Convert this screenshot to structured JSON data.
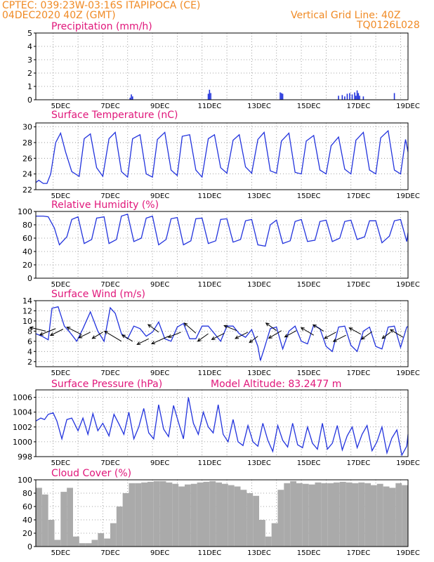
{
  "header": {
    "line1": "CPTEC:   039:23W-03:16S   ITAPIPOCA (CE)",
    "line2": "04DEC2020 40Z (GMT)",
    "right1": "Vertical Grid Line: 40Z",
    "right2": "TQ0126L028"
  },
  "colors": {
    "header": "#f08a24",
    "title": "#e0167a",
    "line": "#2233dd",
    "cloud": "#aaaaaa",
    "arrow": "#000000"
  },
  "chart_data": [
    {
      "type": "bar",
      "title": "Precipitation (mm/h)",
      "xlabels": [
        "5DEC",
        "7DEC",
        "9DEC",
        "11DEC",
        "13DEC",
        "15DEC",
        "17DEC",
        "19DEC"
      ],
      "xlim": [
        4.0,
        19.0
      ],
      "ylim": [
        0,
        5
      ],
      "yticks": [
        0,
        1,
        2,
        3,
        4,
        5
      ],
      "x": [
        7.8,
        7.85,
        7.9,
        10.95,
        11.0,
        11.05,
        13.85,
        13.9,
        13.95,
        16.2,
        16.35,
        16.45,
        16.55,
        16.65,
        16.75,
        16.85,
        16.9,
        16.95,
        17.0,
        17.05,
        17.2,
        18.45
      ],
      "values": [
        0.15,
        0.4,
        0.25,
        0.45,
        0.75,
        0.5,
        0.55,
        0.5,
        0.45,
        0.3,
        0.35,
        0.25,
        0.45,
        0.5,
        0.4,
        0.55,
        0.3,
        0.7,
        0.5,
        0.3,
        0.25,
        0.5
      ]
    },
    {
      "type": "line",
      "title": "Surface Temperature (nC)",
      "xlabels": [
        "5DEC",
        "7DEC",
        "9DEC",
        "11DEC",
        "13DEC",
        "15DEC",
        "17DEC",
        "19DEC"
      ],
      "xlim": [
        4.0,
        19.0
      ],
      "ylim": [
        22,
        30.5
      ],
      "yticks": [
        22,
        24,
        26,
        28,
        30
      ],
      "x": [
        4.0,
        4.12,
        4.3,
        4.45,
        4.6,
        4.8,
        5.0,
        5.2,
        5.45,
        5.75,
        5.95,
        6.2,
        6.45,
        6.7,
        6.95,
        7.2,
        7.45,
        7.7,
        7.9,
        8.2,
        8.45,
        8.7,
        8.9,
        9.2,
        9.45,
        9.7,
        9.9,
        10.2,
        10.45,
        10.7,
        10.95,
        11.2,
        11.45,
        11.7,
        11.95,
        12.2,
        12.45,
        12.7,
        12.95,
        13.2,
        13.45,
        13.7,
        13.9,
        14.2,
        14.45,
        14.7,
        14.9,
        15.2,
        15.45,
        15.7,
        15.9,
        16.2,
        16.45,
        16.7,
        16.9,
        17.2,
        17.45,
        17.7,
        17.9,
        18.2,
        18.45,
        18.7,
        18.9,
        19.0
      ],
      "values": [
        22.9,
        23.2,
        22.8,
        22.8,
        24.0,
        28.0,
        29.2,
        26.8,
        24.3,
        23.7,
        28.5,
        29.1,
        24.8,
        23.7,
        28.5,
        29.3,
        24.3,
        23.6,
        28.5,
        29.0,
        24.0,
        23.6,
        28.4,
        29.3,
        24.5,
        23.8,
        28.8,
        29.0,
        24.5,
        23.6,
        28.5,
        29.0,
        24.8,
        24.1,
        28.3,
        29.0,
        24.9,
        24.1,
        28.4,
        29.3,
        24.4,
        24.1,
        28.2,
        29.2,
        24.2,
        24.0,
        28.2,
        28.9,
        24.5,
        24.0,
        27.6,
        28.7,
        24.6,
        24.0,
        28.3,
        29.3,
        24.5,
        24.0,
        28.6,
        29.5,
        24.5,
        24.0,
        28.4,
        26.8
      ]
    },
    {
      "type": "line",
      "title": "Relative Humidity (%)",
      "xlabels": [
        "5DEC",
        "7DEC",
        "9DEC",
        "11DEC",
        "13DEC",
        "15DEC",
        "17DEC",
        "19DEC"
      ],
      "xlim": [
        4.0,
        19.0
      ],
      "ylim": [
        0,
        100
      ],
      "yticks": [
        0,
        20,
        40,
        60,
        80,
        100
      ],
      "x": [
        4.0,
        4.3,
        4.5,
        4.75,
        4.95,
        5.25,
        5.45,
        5.7,
        5.95,
        6.25,
        6.45,
        6.75,
        6.95,
        7.25,
        7.45,
        7.7,
        7.95,
        8.25,
        8.45,
        8.7,
        8.95,
        9.25,
        9.45,
        9.7,
        9.95,
        10.25,
        10.45,
        10.7,
        10.95,
        11.25,
        11.45,
        11.7,
        11.95,
        12.25,
        12.45,
        12.7,
        12.95,
        13.25,
        13.45,
        13.7,
        13.95,
        14.25,
        14.45,
        14.7,
        14.95,
        15.25,
        15.45,
        15.7,
        15.95,
        16.25,
        16.45,
        16.7,
        16.95,
        17.25,
        17.45,
        17.7,
        17.95,
        18.25,
        18.45,
        18.7,
        18.95,
        19.0
      ],
      "values": [
        93,
        93,
        92,
        75,
        50,
        62,
        88,
        92,
        52,
        58,
        90,
        92,
        52,
        58,
        93,
        96,
        55,
        60,
        90,
        93,
        50,
        58,
        89,
        91,
        50,
        56,
        89,
        90,
        52,
        56,
        88,
        89,
        54,
        58,
        86,
        88,
        50,
        48,
        80,
        87,
        52,
        56,
        85,
        88,
        55,
        57,
        85,
        87,
        55,
        60,
        85,
        87,
        58,
        62,
        86,
        86,
        53,
        63,
        86,
        88,
        55,
        68
      ]
    },
    {
      "type": "line",
      "title": "Surface Wind (m/s)",
      "xlabels": [
        "5DEC",
        "7DEC",
        "9DEC",
        "11DEC",
        "13DEC",
        "15DEC",
        "17DEC",
        "19DEC"
      ],
      "xlim": [
        4.0,
        19.0
      ],
      "ylim": [
        1,
        14
      ],
      "yticks": [
        2,
        4,
        6,
        8,
        10,
        12,
        14
      ],
      "x": [
        4.0,
        4.25,
        4.5,
        4.65,
        4.9,
        5.15,
        5.4,
        5.65,
        5.9,
        6.2,
        6.5,
        6.75,
        7.0,
        7.2,
        7.45,
        7.7,
        7.95,
        8.2,
        8.45,
        8.7,
        8.95,
        9.2,
        9.45,
        9.7,
        9.95,
        10.2,
        10.45,
        10.7,
        10.95,
        11.2,
        11.45,
        11.7,
        11.95,
        12.2,
        12.45,
        12.7,
        12.95,
        13.05,
        13.2,
        13.45,
        13.7,
        13.95,
        14.2,
        14.45,
        14.7,
        14.95,
        15.2,
        15.45,
        15.7,
        15.95,
        16.2,
        16.45,
        16.7,
        16.95,
        17.2,
        17.45,
        17.7,
        17.95,
        18.2,
        18.45,
        18.7,
        18.95,
        19.0
      ],
      "values": [
        7.5,
        7.0,
        6.3,
        12.5,
        12.8,
        9.0,
        7.6,
        6.0,
        8.5,
        11.8,
        8.0,
        6.0,
        12.6,
        11.5,
        7.5,
        6.5,
        9.0,
        8.5,
        7.0,
        7.8,
        9.8,
        6.5,
        6.0,
        8.8,
        9.5,
        6.5,
        6.5,
        9.0,
        9.0,
        7.5,
        6.0,
        9.0,
        9.0,
        7.5,
        6.8,
        8.3,
        5.0,
        2.2,
        4.5,
        8.5,
        8.8,
        4.5,
        8.0,
        9.0,
        6.0,
        5.5,
        9.2,
        8.5,
        5.0,
        4.0,
        8.8,
        9.0,
        5.2,
        4.0,
        8.0,
        8.8,
        5.0,
        4.5,
        8.8,
        9.0,
        4.8,
        8.8,
        8.9
      ],
      "vectors": [
        {
          "x": 4.4,
          "y": 8.0,
          "u": -0.75,
          "v": 0.3
        },
        {
          "x": 4.8,
          "y": 8.5,
          "u": -0.75,
          "v": -0.5
        },
        {
          "x": 5.1,
          "y": 8.4,
          "u": -0.6,
          "v": -0.5
        },
        {
          "x": 5.85,
          "y": 7.3,
          "u": -0.7,
          "v": 0.6
        },
        {
          "x": 6.2,
          "y": 7.8,
          "u": -0.55,
          "v": -0.45
        },
        {
          "x": 6.7,
          "y": 7.8,
          "u": -0.5,
          "v": -0.5
        },
        {
          "x": 7.45,
          "y": 6.0,
          "u": -0.8,
          "v": 0.8
        },
        {
          "x": 7.9,
          "y": 6.0,
          "u": -0.5,
          "v": 0.5
        },
        {
          "x": 8.55,
          "y": 6.5,
          "u": -0.55,
          "v": -0.45
        },
        {
          "x": 8.95,
          "y": 7.8,
          "u": -0.5,
          "v": 0.6
        },
        {
          "x": 9.35,
          "y": 7.0,
          "u": -0.8,
          "v": -0.6
        },
        {
          "x": 9.85,
          "y": 7.8,
          "u": -0.6,
          "v": -0.4
        },
        {
          "x": 10.45,
          "y": 7.6,
          "u": -0.55,
          "v": 0.8
        },
        {
          "x": 10.95,
          "y": 7.5,
          "u": -0.5,
          "v": -0.6
        },
        {
          "x": 11.6,
          "y": 7.6,
          "u": -0.6,
          "v": -0.5
        },
        {
          "x": 12.1,
          "y": 8.1,
          "u": -0.6,
          "v": 0.4
        },
        {
          "x": 12.55,
          "y": 7.8,
          "u": -0.6,
          "v": -0.5
        },
        {
          "x": 12.95,
          "y": 7.0,
          "u": -0.4,
          "v": -0.5
        },
        {
          "x": 13.7,
          "y": 8.1,
          "u": -0.5,
          "v": 0.6
        },
        {
          "x": 13.9,
          "y": 8.1,
          "u": -0.6,
          "v": -0.6
        },
        {
          "x": 14.5,
          "y": 8.1,
          "u": -0.55,
          "v": -0.5
        },
        {
          "x": 15.2,
          "y": 7.2,
          "u": -0.6,
          "v": 0.6
        },
        {
          "x": 15.6,
          "y": 8.0,
          "u": -0.5,
          "v": 0.5
        },
        {
          "x": 16.1,
          "y": 7.8,
          "u": -0.55,
          "v": -0.5
        },
        {
          "x": 16.5,
          "y": 7.2,
          "u": -0.6,
          "v": -0.5
        },
        {
          "x": 17.1,
          "y": 7.4,
          "u": -0.55,
          "v": 0.5
        },
        {
          "x": 17.55,
          "y": 7.9,
          "u": -0.5,
          "v": -0.6
        },
        {
          "x": 18.3,
          "y": 7.8,
          "u": -0.4,
          "v": -0.5
        },
        {
          "x": 18.8,
          "y": 6.8,
          "u": -0.6,
          "v": 0.6
        }
      ]
    },
    {
      "type": "line",
      "title": "Surface Pressure (hPa)",
      "annotation": "Model Altitude: 83.2477  m",
      "xlabels": [
        "5DEC",
        "7DEC",
        "9DEC",
        "11DEC",
        "13DEC",
        "15DEC",
        "17DEC",
        "19DEC"
      ],
      "xlim": [
        4.0,
        19.0
      ],
      "ylim": [
        998,
        1007
      ],
      "yticks": [
        998,
        1000,
        1002,
        1004,
        1006
      ],
      "x": [
        4.0,
        4.2,
        4.35,
        4.5,
        4.7,
        4.85,
        5.05,
        5.25,
        5.45,
        5.7,
        5.9,
        6.1,
        6.3,
        6.5,
        6.7,
        6.95,
        7.15,
        7.35,
        7.55,
        7.75,
        7.95,
        8.15,
        8.35,
        8.55,
        8.75,
        8.95,
        9.15,
        9.35,
        9.55,
        9.75,
        9.95,
        10.15,
        10.35,
        10.55,
        10.75,
        10.95,
        11.15,
        11.35,
        11.55,
        11.75,
        11.95,
        12.15,
        12.35,
        12.55,
        12.75,
        12.95,
        13.15,
        13.35,
        13.55,
        13.75,
        13.95,
        14.15,
        14.35,
        14.55,
        14.75,
        14.95,
        15.15,
        15.35,
        15.55,
        15.75,
        15.95,
        16.15,
        16.35,
        16.55,
        16.75,
        16.95,
        17.15,
        17.35,
        17.55,
        17.75,
        17.95,
        18.15,
        18.35,
        18.55,
        18.75,
        18.95,
        19.0
      ],
      "values": [
        1002.8,
        1003.2,
        1003.0,
        1003.7,
        1003.9,
        1002.8,
        1000.4,
        1003.0,
        1003.2,
        1001.5,
        1003.2,
        1001.0,
        1003.8,
        1001.5,
        1002.5,
        1000.8,
        1003.7,
        1002.4,
        1001.0,
        1004.0,
        1000.4,
        1002.0,
        1004.5,
        1001.2,
        1000.4,
        1005.0,
        1001.7,
        1000.7,
        1004.9,
        1002.6,
        1000.4,
        1006.0,
        1002.5,
        1001.0,
        1004.0,
        1002.0,
        1001.2,
        1005.0,
        1001.0,
        1000.0,
        1003.0,
        1000.0,
        999.5,
        1002.2,
        1000.0,
        999.4,
        1002.5,
        1000.2,
        998.7,
        1002.2,
        1000.2,
        999.3,
        1002.5,
        999.6,
        999.2,
        1002.0,
        999.8,
        999.0,
        1002.5,
        999.0,
        999.8,
        1002.2,
        998.9,
        1000.8,
        1002.0,
        999.2,
        1001.0,
        1002.2,
        998.8,
        1000.0,
        1002.0,
        998.5,
        1000.5,
        1001.6,
        998.2,
        999.4,
        1001.0
      ]
    },
    {
      "type": "bar",
      "title": "Cloud Cover (%)",
      "xlabels": [
        "5DEC",
        "7DEC",
        "9DEC",
        "11DEC",
        "13DEC",
        "15DEC",
        "17DEC",
        "19DEC"
      ],
      "xlim": [
        4.0,
        19.0
      ],
      "ylim": [
        0,
        100
      ],
      "yticks": [
        0,
        20,
        40,
        60,
        80,
        100
      ],
      "x": [
        4.0,
        4.25,
        4.5,
        4.75,
        5.0,
        5.25,
        5.5,
        5.75,
        6.0,
        6.25,
        6.5,
        6.75,
        7.0,
        7.25,
        7.5,
        7.75,
        8.0,
        8.25,
        8.5,
        8.75,
        9.0,
        9.25,
        9.5,
        9.75,
        10.0,
        10.25,
        10.5,
        10.75,
        11.0,
        11.25,
        11.5,
        11.75,
        12.0,
        12.25,
        12.5,
        12.75,
        13.0,
        13.25,
        13.5,
        13.75,
        14.0,
        14.25,
        14.5,
        14.75,
        15.0,
        15.25,
        15.5,
        15.75,
        16.0,
        16.25,
        16.5,
        16.75,
        17.0,
        17.25,
        17.5,
        17.75,
        18.0,
        18.25,
        18.5,
        18.75,
        19.0
      ],
      "values": [
        88,
        78,
        40,
        10,
        82,
        88,
        15,
        5,
        5,
        10,
        20,
        12,
        35,
        60,
        80,
        95,
        95,
        96,
        97,
        98,
        98,
        96,
        94,
        90,
        93,
        94,
        96,
        97,
        98,
        96,
        94,
        92,
        90,
        85,
        80,
        76,
        40,
        15,
        35,
        85,
        95,
        98,
        95,
        94,
        93,
        96,
        95,
        95,
        96,
        97,
        96,
        95,
        96,
        95,
        92,
        94,
        90,
        88,
        95,
        92,
        88
      ]
    }
  ]
}
